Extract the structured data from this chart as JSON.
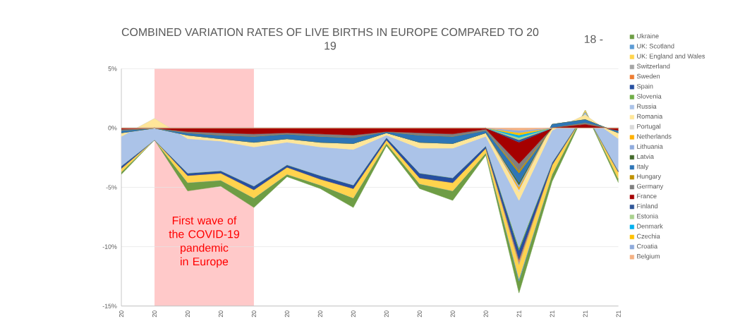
{
  "chart_data": {
    "type": "area",
    "stacked": true,
    "title": "COMBINED VARIATION RATES OF LIVE BIRTHS IN EUROPE COMPARED TO 20",
    "subtitle": "19",
    "annotations": [
      "18 -",
      "First wave of the COVID-19 pandemic in Europe"
    ],
    "categories": [
      "20",
      "20",
      "20",
      "20",
      "20",
      "20",
      "20",
      "20",
      "20",
      "20",
      "20",
      "20",
      "21",
      "21",
      "21",
      "21"
    ],
    "ylim": [
      -15,
      5
    ],
    "yticks": [
      {
        "value": 5,
        "label": "5%"
      },
      {
        "value": 0,
        "label": "0%"
      },
      {
        "value": -5,
        "label": "-5%"
      },
      {
        "value": -10,
        "label": "-10%"
      },
      {
        "value": -15,
        "label": "-15%"
      }
    ],
    "grid": "y",
    "legend": "right",
    "series": [
      {
        "name": "Belgium",
        "color": "#f4b183",
        "values": [
          0,
          0,
          0,
          0,
          0,
          0,
          0,
          0,
          0,
          0,
          0,
          0,
          -0.2,
          0,
          0,
          0
        ]
      },
      {
        "name": "Croatia",
        "color": "#8eaadb",
        "values": [
          0,
          0,
          0,
          0,
          0,
          0,
          0,
          0,
          0,
          0,
          0,
          0,
          -0.2,
          0,
          0,
          0
        ]
      },
      {
        "name": "Czechia",
        "color": "#ffc000",
        "values": [
          0,
          0,
          0,
          0,
          0,
          0,
          0,
          0,
          0,
          0,
          0,
          0,
          -0.2,
          0,
          0,
          0
        ]
      },
      {
        "name": "Denmark",
        "color": "#00b0f0",
        "values": [
          0,
          0,
          0,
          0,
          0,
          0,
          0,
          0,
          0,
          0,
          0,
          0,
          -0.2,
          0,
          0,
          0
        ]
      },
      {
        "name": "Estonia",
        "color": "#a9d18e",
        "values": [
          0,
          0,
          0,
          0,
          0,
          0,
          0,
          0,
          0,
          0,
          0,
          0,
          -0.2,
          0,
          0,
          0
        ]
      },
      {
        "name": "Finland",
        "color": "#2f5597",
        "values": [
          0,
          0,
          0,
          0,
          0,
          0,
          0,
          0,
          0,
          0,
          0,
          0,
          -0.2,
          0,
          0,
          0
        ]
      },
      {
        "name": "France",
        "color": "#a50000",
        "values": [
          -0.1,
          0,
          -0.3,
          -0.4,
          -0.5,
          -0.4,
          -0.5,
          -0.6,
          -0.3,
          -0.4,
          -0.5,
          -0.1,
          -1.8,
          0,
          0.3,
          -0.2
        ]
      },
      {
        "name": "Germany",
        "color": "#7f7f7f",
        "values": [
          -0.1,
          0,
          -0.1,
          -0.2,
          -0.2,
          -0.1,
          -0.2,
          -0.2,
          0,
          -0.2,
          -0.2,
          -0.1,
          -0.6,
          0,
          0.1,
          0
        ]
      },
      {
        "name": "Hungary",
        "color": "#bf9000",
        "values": [
          0,
          0,
          0,
          0,
          0,
          0,
          0,
          0,
          0,
          0,
          0,
          0,
          -0.2,
          0,
          0,
          0
        ]
      },
      {
        "name": "Italy",
        "color": "#2e75b6",
        "values": [
          -0.2,
          0,
          -0.2,
          -0.3,
          -0.5,
          -0.4,
          -0.5,
          -0.5,
          -0.1,
          -0.6,
          -0.6,
          -0.2,
          -0.8,
          0.3,
          0.3,
          -0.2
        ]
      },
      {
        "name": "Latvia",
        "color": "#43682b",
        "values": [
          0,
          0,
          0,
          0,
          0,
          0,
          0,
          0,
          0,
          0,
          0,
          0,
          -0.2,
          0,
          0,
          0
        ]
      },
      {
        "name": "Lithuania",
        "color": "#8faadc",
        "values": [
          0,
          0,
          0,
          0,
          0,
          0,
          0,
          0,
          0,
          0,
          0,
          0,
          -0.2,
          0,
          0,
          0
        ]
      },
      {
        "name": "Netherlands",
        "color": "#ffb000",
        "values": [
          0,
          0,
          0,
          0,
          0,
          0,
          0,
          0,
          0,
          0,
          0,
          0,
          -0.2,
          0,
          0,
          0
        ]
      },
      {
        "name": "Portugal",
        "color": "#d9d9d9",
        "values": [
          0,
          0,
          0,
          0,
          0,
          0,
          0,
          0,
          0,
          0,
          0,
          0,
          -0.2,
          0,
          0,
          0
        ]
      },
      {
        "name": "Romania",
        "color": "#ffe699",
        "values": [
          -0.3,
          0.8,
          -0.3,
          -0.2,
          -0.4,
          -0.3,
          -0.4,
          -0.5,
          -0.2,
          -0.5,
          -0.4,
          -0.3,
          -0.7,
          -0.5,
          0.4,
          -0.5
        ]
      },
      {
        "name": "Russia",
        "color": "#abc3e8",
        "values": [
          -2.5,
          -1.8,
          -2.9,
          -2.5,
          -3.3,
          -1.9,
          -2.4,
          -3.0,
          -0.2,
          -2.1,
          -2.5,
          -0.8,
          -4.0,
          -2.7,
          0.2,
          -2.7
        ]
      },
      {
        "name": "Slovenia",
        "color": "#70ad47",
        "values": [
          0,
          0,
          0,
          0,
          0,
          0,
          0,
          0,
          0,
          0,
          0,
          0,
          -0.2,
          0,
          0,
          0
        ]
      },
      {
        "name": "Spain",
        "color": "#264fa0",
        "values": [
          -0.2,
          0,
          -0.2,
          -0.2,
          -0.3,
          -0.2,
          -0.3,
          -0.3,
          -0.2,
          -0.4,
          -0.4,
          -0.2,
          -0.8,
          -0.2,
          0,
          -0.1
        ]
      },
      {
        "name": "Sweden",
        "color": "#ed7d31",
        "values": [
          0,
          0,
          0,
          0,
          0,
          0,
          0,
          0,
          0,
          0,
          0,
          0,
          -0.2,
          0,
          0,
          0
        ]
      },
      {
        "name": "Switzerland",
        "color": "#a5a5a5",
        "values": [
          0,
          0,
          0,
          0,
          0,
          0,
          0,
          0,
          0,
          0,
          0,
          0,
          -0.2,
          0,
          0,
          0
        ]
      },
      {
        "name": "UK: England and Wales",
        "color": "#ffd34d",
        "values": [
          -0.3,
          0,
          -0.6,
          -0.6,
          -0.7,
          -0.6,
          -0.5,
          -0.8,
          -0.3,
          -0.5,
          -0.7,
          -0.4,
          -1.2,
          -0.8,
          0.2,
          -0.6
        ]
      },
      {
        "name": "UK: Scotland",
        "color": "#5b9bd5",
        "values": [
          0,
          0,
          0,
          0,
          0,
          0,
          0,
          0,
          0,
          0,
          0,
          0,
          -0.2,
          0,
          0,
          0
        ]
      },
      {
        "name": "Ukraine",
        "color": "#6e9d45",
        "values": [
          -0.2,
          0,
          -0.7,
          -0.5,
          -0.8,
          -0.2,
          -0.3,
          -0.8,
          -0.2,
          -0.4,
          -0.8,
          -0.2,
          -1.0,
          -0.6,
          -0.1,
          -0.3
        ]
      }
    ]
  }
}
